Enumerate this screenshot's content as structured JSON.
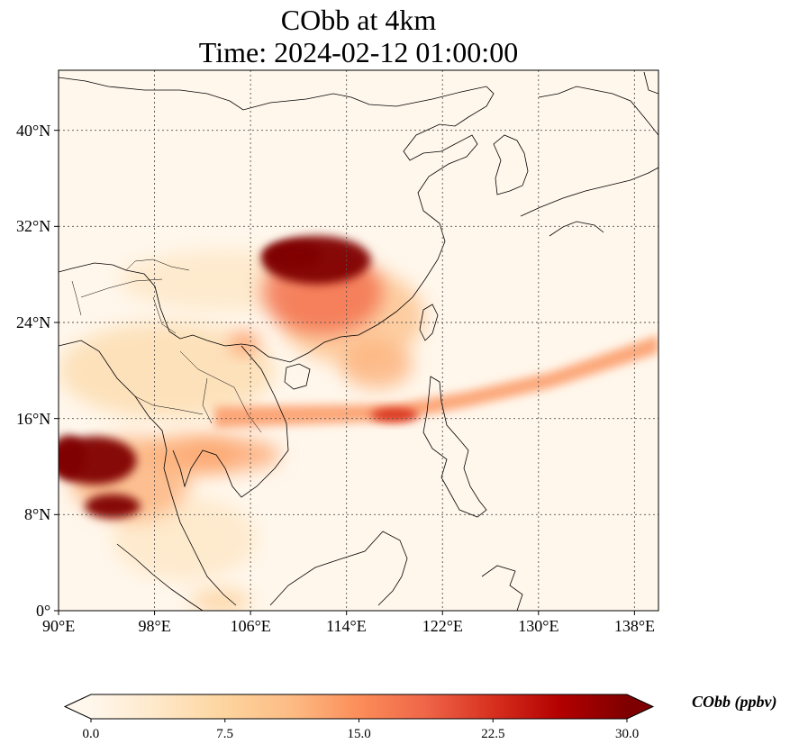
{
  "title": {
    "line1": "CObb at 4km",
    "line2": "Time: 2024-02-12 01:00:00"
  },
  "map": {
    "projection": "PlateCarree",
    "lon_range": [
      90,
      140
    ],
    "lat_range": [
      0,
      45
    ],
    "gridlines": "dotted",
    "coastlines": true,
    "borders": true,
    "x_ticks": [
      {
        "value": 90,
        "label": "90°E"
      },
      {
        "value": 98,
        "label": "98°E"
      },
      {
        "value": 106,
        "label": "106°E"
      },
      {
        "value": 114,
        "label": "114°E"
      },
      {
        "value": 122,
        "label": "122°E"
      },
      {
        "value": 130,
        "label": "130°E"
      },
      {
        "value": 138,
        "label": "138°E"
      }
    ],
    "y_ticks": [
      {
        "value": 0,
        "label": "0°"
      },
      {
        "value": 8,
        "label": "8°N"
      },
      {
        "value": 16,
        "label": "16°N"
      },
      {
        "value": 24,
        "label": "24°N"
      },
      {
        "value": 32,
        "label": "32°N"
      },
      {
        "value": 40,
        "label": "40°N"
      }
    ],
    "plumes": [
      {
        "lon": 111.5,
        "lat": 29.2,
        "rx": 4.5,
        "ry": 2.0,
        "value": 30
      },
      {
        "lon": 109.5,
        "lat": 29.6,
        "rx": 2.5,
        "ry": 1.1,
        "value": 30
      },
      {
        "lon": 112.0,
        "lat": 26.5,
        "rx": 5.0,
        "ry": 3.5,
        "value": 18
      },
      {
        "lon": 114.5,
        "lat": 24.5,
        "rx": 6.0,
        "ry": 4.0,
        "value": 10
      },
      {
        "lon": 105.5,
        "lat": 22.3,
        "rx": 1.2,
        "ry": 0.9,
        "value": 15
      },
      {
        "lon": 116.5,
        "lat": 20.5,
        "rx": 3.0,
        "ry": 2.0,
        "value": 12
      },
      {
        "lon": 93.0,
        "lat": 12.5,
        "rx": 3.5,
        "ry": 2.0,
        "value": 30
      },
      {
        "lon": 90.8,
        "lat": 12.8,
        "rx": 1.5,
        "ry": 1.8,
        "value": 30
      },
      {
        "lon": 94.5,
        "lat": 8.7,
        "rx": 2.3,
        "ry": 1.0,
        "value": 30
      },
      {
        "lon": 96.0,
        "lat": 11.0,
        "rx": 5.0,
        "ry": 3.5,
        "value": 12
      },
      {
        "lon": 101.0,
        "lat": 13.0,
        "rx": 4.0,
        "ry": 1.6,
        "value": 12
      },
      {
        "lon": 104.0,
        "lat": 13.0,
        "rx": 4.5,
        "ry": 1.4,
        "value": 13
      },
      {
        "lon": 99.0,
        "lat": 20.0,
        "rx": 9.0,
        "ry": 4.0,
        "value": 6
      },
      {
        "lon": 104.0,
        "lat": 27.5,
        "rx": 9.0,
        "ry": 2.5,
        "value": 4
      },
      {
        "lon": 100.5,
        "lat": 6.0,
        "rx": 6.0,
        "ry": 3.5,
        "value": 4
      },
      {
        "lon": 103.5,
        "lat": 0.8,
        "rx": 2.5,
        "ry": 1.0,
        "value": 8
      }
    ],
    "band": {
      "points": [
        [
          103,
          16.1
        ],
        [
          110,
          16.3
        ],
        [
          118,
          16.5
        ],
        [
          124,
          17.6
        ],
        [
          131,
          19.2
        ],
        [
          140,
          22.2
        ]
      ],
      "widths": [
        1.8,
        1.6,
        1.4,
        1.3,
        1.3,
        1.5
      ],
      "value": 14
    },
    "band_core": {
      "lon": 118.0,
      "lat": 16.3,
      "rx": 2.0,
      "ry": 0.6,
      "value": 22
    }
  },
  "colorbar": {
    "label": "CObb (ppbv)",
    "min": 0,
    "max": 30,
    "extend": "both",
    "cmap": "OrRd",
    "stops": [
      "#fff7ec",
      "#fee8c8",
      "#fdd49e",
      "#fdbb84",
      "#fc8d59",
      "#ef6548",
      "#d7301f",
      "#b30000",
      "#7f0000"
    ],
    "ticks": [
      {
        "value": 0,
        "label": "0.0"
      },
      {
        "value": 7.5,
        "label": "7.5"
      },
      {
        "value": 15,
        "label": "15.0"
      },
      {
        "value": 22.5,
        "label": "22.5"
      },
      {
        "value": 30,
        "label": "30.0"
      }
    ]
  }
}
